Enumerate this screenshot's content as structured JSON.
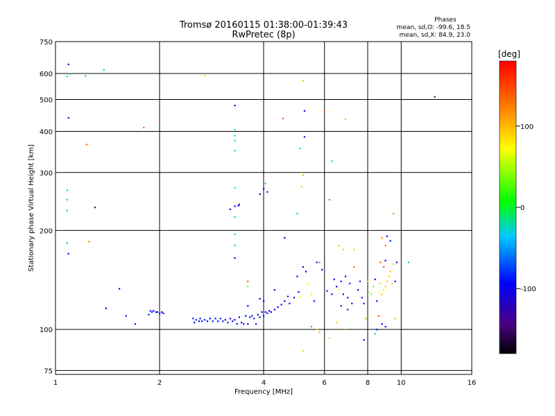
{
  "chart_data": {
    "type": "scatter",
    "title": "Tromsø 20160115 01:38:00-01:39:43",
    "subtitle": "RwPretec (8p)",
    "xlabel": "Frequency [MHz]",
    "ylabel": "Stationary phase Virtual Height [km]",
    "x_scale": "log",
    "y_scale": "log",
    "xlim": [
      1,
      16
    ],
    "ylim": [
      73,
      750
    ],
    "x_ticks": [
      1,
      2,
      4,
      6,
      8,
      10,
      16
    ],
    "x_tick_labels": [
      "1",
      "2",
      "4",
      "6",
      "8",
      "10",
      "16"
    ],
    "y_ticks": [
      75,
      100,
      200,
      300,
      400,
      500,
      600,
      750
    ],
    "y_tick_labels": [
      "75",
      "100",
      "200",
      "300",
      "400",
      "500",
      "600",
      "750"
    ],
    "grid": true,
    "stats": {
      "title": "Phases",
      "line_o": "mean, sd,O: -99.6, 18.5",
      "line_x": "mean, sd,X:  84.9, 23.0"
    },
    "colorbar": {
      "label": "[deg]",
      "range": [
        -180,
        180
      ],
      "ticks": [
        100,
        0,
        -100
      ],
      "tick_labels": [
        "100",
        "0",
        "-100"
      ]
    },
    "points": [
      {
        "x": 1.09,
        "y": 640,
        "p": -110
      },
      {
        "x": 1.08,
        "y": 588,
        "p": -20
      },
      {
        "x": 1.1,
        "y": 598,
        "p": -40
      },
      {
        "x": 1.22,
        "y": 590,
        "p": -40
      },
      {
        "x": 1.38,
        "y": 615,
        "p": -30
      },
      {
        "x": 1.09,
        "y": 440,
        "p": -120
      },
      {
        "x": 1.23,
        "y": 365,
        "p": 140
      },
      {
        "x": 1.08,
        "y": 265,
        "p": -20
      },
      {
        "x": 1.08,
        "y": 248,
        "p": -30
      },
      {
        "x": 1.08,
        "y": 230,
        "p": -20
      },
      {
        "x": 1.3,
        "y": 235,
        "p": -150
      },
      {
        "x": 1.08,
        "y": 183,
        "p": -40
      },
      {
        "x": 1.09,
        "y": 170,
        "p": -110
      },
      {
        "x": 1.25,
        "y": 185,
        "p": 130
      },
      {
        "x": 1.4,
        "y": 116,
        "p": -120
      },
      {
        "x": 1.53,
        "y": 133,
        "p": -120
      },
      {
        "x": 1.6,
        "y": 110,
        "p": -120
      },
      {
        "x": 1.7,
        "y": 104,
        "p": -110
      },
      {
        "x": 1.8,
        "y": 411,
        "p": 140
      },
      {
        "x": 2.7,
        "y": 592,
        "p": 100
      },
      {
        "x": 1.88,
        "y": 114,
        "p": -110
      },
      {
        "x": 1.9,
        "y": 113,
        "p": -110
      },
      {
        "x": 1.92,
        "y": 114,
        "p": -110
      },
      {
        "x": 1.95,
        "y": 113,
        "p": -100
      },
      {
        "x": 1.97,
        "y": 113,
        "p": -110
      },
      {
        "x": 2.0,
        "y": 112,
        "p": -110
      },
      {
        "x": 2.03,
        "y": 113,
        "p": -110
      },
      {
        "x": 2.05,
        "y": 112,
        "p": -110
      },
      {
        "x": 1.86,
        "y": 111,
        "p": -100
      },
      {
        "x": 2.5,
        "y": 108,
        "p": -110
      },
      {
        "x": 2.52,
        "y": 105,
        "p": -110
      },
      {
        "x": 2.55,
        "y": 107,
        "p": -110
      },
      {
        "x": 2.6,
        "y": 106,
        "p": -110
      },
      {
        "x": 2.62,
        "y": 108,
        "p": -110
      },
      {
        "x": 2.65,
        "y": 106,
        "p": -110
      },
      {
        "x": 2.7,
        "y": 107,
        "p": -110
      },
      {
        "x": 2.75,
        "y": 106,
        "p": -110
      },
      {
        "x": 2.8,
        "y": 108,
        "p": -110
      },
      {
        "x": 2.85,
        "y": 106,
        "p": -110
      },
      {
        "x": 2.9,
        "y": 108,
        "p": -110
      },
      {
        "x": 2.95,
        "y": 106,
        "p": -110
      },
      {
        "x": 3.0,
        "y": 108,
        "p": -110
      },
      {
        "x": 3.05,
        "y": 106,
        "p": -110
      },
      {
        "x": 3.1,
        "y": 107,
        "p": -110
      },
      {
        "x": 3.15,
        "y": 105,
        "p": -110
      },
      {
        "x": 3.2,
        "y": 108,
        "p": -110
      },
      {
        "x": 3.25,
        "y": 106,
        "p": -110
      },
      {
        "x": 3.3,
        "y": 107,
        "p": -110
      },
      {
        "x": 3.35,
        "y": 104,
        "p": -110
      },
      {
        "x": 3.4,
        "y": 109,
        "p": -110
      },
      {
        "x": 3.45,
        "y": 105,
        "p": -110
      },
      {
        "x": 3.5,
        "y": 104,
        "p": -110
      },
      {
        "x": 3.55,
        "y": 110,
        "p": -110
      },
      {
        "x": 3.6,
        "y": 104,
        "p": -110
      },
      {
        "x": 3.65,
        "y": 109,
        "p": -110
      },
      {
        "x": 3.7,
        "y": 110,
        "p": -110
      },
      {
        "x": 3.75,
        "y": 108,
        "p": -110
      },
      {
        "x": 3.8,
        "y": 104,
        "p": -110
      },
      {
        "x": 3.85,
        "y": 111,
        "p": -110
      },
      {
        "x": 3.9,
        "y": 109,
        "p": -110
      },
      {
        "x": 3.95,
        "y": 113,
        "p": -110
      },
      {
        "x": 4.0,
        "y": 110,
        "p": -110
      },
      {
        "x": 4.05,
        "y": 113,
        "p": -110
      },
      {
        "x": 4.1,
        "y": 112,
        "p": -110
      },
      {
        "x": 4.15,
        "y": 114,
        "p": -110
      },
      {
        "x": 4.2,
        "y": 113,
        "p": -110
      },
      {
        "x": 4.3,
        "y": 115,
        "p": -110
      },
      {
        "x": 4.4,
        "y": 117,
        "p": -110
      },
      {
        "x": 4.5,
        "y": 119,
        "p": -110
      },
      {
        "x": 4.6,
        "y": 122,
        "p": -110
      },
      {
        "x": 4.7,
        "y": 126,
        "p": -110
      },
      {
        "x": 4.75,
        "y": 120,
        "p": -110
      },
      {
        "x": 4.9,
        "y": 125,
        "p": -110
      },
      {
        "x": 3.9,
        "y": 124,
        "p": -110
      },
      {
        "x": 4.0,
        "y": 122,
        "p": -110
      },
      {
        "x": 3.6,
        "y": 118,
        "p": -110
      },
      {
        "x": 3.3,
        "y": 480,
        "p": -110
      },
      {
        "x": 3.3,
        "y": 405,
        "p": -20
      },
      {
        "x": 3.3,
        "y": 388,
        "p": -20
      },
      {
        "x": 3.3,
        "y": 375,
        "p": -20
      },
      {
        "x": 3.3,
        "y": 350,
        "p": -20
      },
      {
        "x": 3.3,
        "y": 270,
        "p": -20
      },
      {
        "x": 3.3,
        "y": 237,
        "p": -110
      },
      {
        "x": 3.38,
        "y": 238,
        "p": -120
      },
      {
        "x": 3.4,
        "y": 240,
        "p": -120
      },
      {
        "x": 3.2,
        "y": 232,
        "p": -110
      },
      {
        "x": 3.3,
        "y": 220,
        "p": -20
      },
      {
        "x": 3.3,
        "y": 195,
        "p": -20
      },
      {
        "x": 3.3,
        "y": 180,
        "p": -30
      },
      {
        "x": 3.3,
        "y": 165,
        "p": -110
      },
      {
        "x": 3.6,
        "y": 140,
        "p": 150
      },
      {
        "x": 3.6,
        "y": 135,
        "p": 40
      },
      {
        "x": 3.9,
        "y": 258,
        "p": -110
      },
      {
        "x": 4.0,
        "y": 268,
        "p": -120
      },
      {
        "x": 4.1,
        "y": 262,
        "p": -100
      },
      {
        "x": 4.05,
        "y": 278,
        "p": -20
      },
      {
        "x": 4.55,
        "y": 438,
        "p": 150
      },
      {
        "x": 4.6,
        "y": 190,
        "p": -110
      },
      {
        "x": 5.0,
        "y": 225,
        "p": -40
      },
      {
        "x": 5.1,
        "y": 355,
        "p": -20
      },
      {
        "x": 5.15,
        "y": 272,
        "p": 100
      },
      {
        "x": 5.2,
        "y": 295,
        "p": 110
      },
      {
        "x": 5.2,
        "y": 570,
        "p": 40
      },
      {
        "x": 5.25,
        "y": 462,
        "p": -110
      },
      {
        "x": 5.25,
        "y": 385,
        "p": -120
      },
      {
        "x": 4.3,
        "y": 132,
        "p": -110
      },
      {
        "x": 5.0,
        "y": 145,
        "p": -110
      },
      {
        "x": 5.05,
        "y": 130,
        "p": -110
      },
      {
        "x": 5.1,
        "y": 126,
        "p": 80
      },
      {
        "x": 5.2,
        "y": 155,
        "p": -110
      },
      {
        "x": 5.3,
        "y": 150,
        "p": -110
      },
      {
        "x": 5.4,
        "y": 138,
        "p": 80
      },
      {
        "x": 5.5,
        "y": 128,
        "p": 90
      },
      {
        "x": 5.6,
        "y": 122,
        "p": -110
      },
      {
        "x": 5.7,
        "y": 160,
        "p": -110
      },
      {
        "x": 5.8,
        "y": 160,
        "p": 140
      },
      {
        "x": 5.9,
        "y": 152,
        "p": -110
      },
      {
        "x": 5.5,
        "y": 102,
        "p": 140
      },
      {
        "x": 5.7,
        "y": 100,
        "p": 100
      },
      {
        "x": 5.8,
        "y": 98,
        "p": 110
      },
      {
        "x": 5.2,
        "y": 86,
        "p": 100
      },
      {
        "x": 6.0,
        "y": 460,
        "p": 140
      },
      {
        "x": 6.2,
        "y": 248,
        "p": 140
      },
      {
        "x": 6.3,
        "y": 325,
        "p": -20
      },
      {
        "x": 6.4,
        "y": 142,
        "p": -110
      },
      {
        "x": 6.5,
        "y": 135,
        "p": -110
      },
      {
        "x": 6.6,
        "y": 132,
        "p": 80
      },
      {
        "x": 6.7,
        "y": 140,
        "p": -110
      },
      {
        "x": 6.8,
        "y": 128,
        "p": -110
      },
      {
        "x": 6.9,
        "y": 145,
        "p": -110
      },
      {
        "x": 7.0,
        "y": 125,
        "p": -110
      },
      {
        "x": 7.1,
        "y": 138,
        "p": -110
      },
      {
        "x": 7.2,
        "y": 120,
        "p": -110
      },
      {
        "x": 6.9,
        "y": 435,
        "p": 110
      },
      {
        "x": 6.8,
        "y": 175,
        "p": 100
      },
      {
        "x": 6.6,
        "y": 180,
        "p": 100
      },
      {
        "x": 6.3,
        "y": 128,
        "p": -110
      },
      {
        "x": 6.1,
        "y": 131,
        "p": -110
      },
      {
        "x": 6.7,
        "y": 118,
        "p": -120
      },
      {
        "x": 7.0,
        "y": 115,
        "p": -100
      },
      {
        "x": 6.5,
        "y": 105,
        "p": 100
      },
      {
        "x": 6.9,
        "y": 100,
        "p": 110
      },
      {
        "x": 6.2,
        "y": 94,
        "p": 100
      },
      {
        "x": 7.3,
        "y": 155,
        "p": 140
      },
      {
        "x": 7.3,
        "y": 175,
        "p": 100
      },
      {
        "x": 7.5,
        "y": 132,
        "p": -110
      },
      {
        "x": 7.6,
        "y": 140,
        "p": -110
      },
      {
        "x": 7.7,
        "y": 125,
        "p": -110
      },
      {
        "x": 7.8,
        "y": 120,
        "p": -110
      },
      {
        "x": 7.9,
        "y": 108,
        "p": 110
      },
      {
        "x": 7.8,
        "y": 93,
        "p": -110
      },
      {
        "x": 8.0,
        "y": 150,
        "p": 150
      },
      {
        "x": 8.0,
        "y": 140,
        "p": 100
      },
      {
        "x": 8.1,
        "y": 130,
        "p": 60
      },
      {
        "x": 8.2,
        "y": 128,
        "p": 40
      },
      {
        "x": 8.3,
        "y": 135,
        "p": 40
      },
      {
        "x": 8.4,
        "y": 142,
        "p": -110
      },
      {
        "x": 8.5,
        "y": 122,
        "p": -110
      },
      {
        "x": 8.6,
        "y": 130,
        "p": 80
      },
      {
        "x": 8.7,
        "y": 138,
        "p": 100
      },
      {
        "x": 8.8,
        "y": 128,
        "p": 100
      },
      {
        "x": 8.9,
        "y": 132,
        "p": 90
      },
      {
        "x": 9.0,
        "y": 135,
        "p": 100
      },
      {
        "x": 9.1,
        "y": 140,
        "p": 100
      },
      {
        "x": 9.2,
        "y": 145,
        "p": 100
      },
      {
        "x": 9.3,
        "y": 150,
        "p": 110
      },
      {
        "x": 9.4,
        "y": 138,
        "p": 100
      },
      {
        "x": 9.5,
        "y": 158,
        "p": 100
      },
      {
        "x": 9.6,
        "y": 140,
        "p": -110
      },
      {
        "x": 8.7,
        "y": 160,
        "p": 140
      },
      {
        "x": 8.9,
        "y": 155,
        "p": 150
      },
      {
        "x": 9.0,
        "y": 162,
        "p": -110
      },
      {
        "x": 8.8,
        "y": 190,
        "p": 130
      },
      {
        "x": 9.0,
        "y": 180,
        "p": 140
      },
      {
        "x": 9.3,
        "y": 186,
        "p": -110
      },
      {
        "x": 9.5,
        "y": 225,
        "p": 120
      },
      {
        "x": 9.1,
        "y": 192,
        "p": -110
      },
      {
        "x": 9.7,
        "y": 160,
        "p": -110
      },
      {
        "x": 8.4,
        "y": 97,
        "p": -20
      },
      {
        "x": 8.5,
        "y": 100,
        "p": -110
      },
      {
        "x": 8.8,
        "y": 104,
        "p": -110
      },
      {
        "x": 9.0,
        "y": 102,
        "p": -110
      },
      {
        "x": 8.6,
        "y": 110,
        "p": 150
      },
      {
        "x": 9.6,
        "y": 108,
        "p": 110
      },
      {
        "x": 10.5,
        "y": 160,
        "p": -20
      },
      {
        "x": 12.5,
        "y": 510,
        "p": -150
      }
    ]
  }
}
